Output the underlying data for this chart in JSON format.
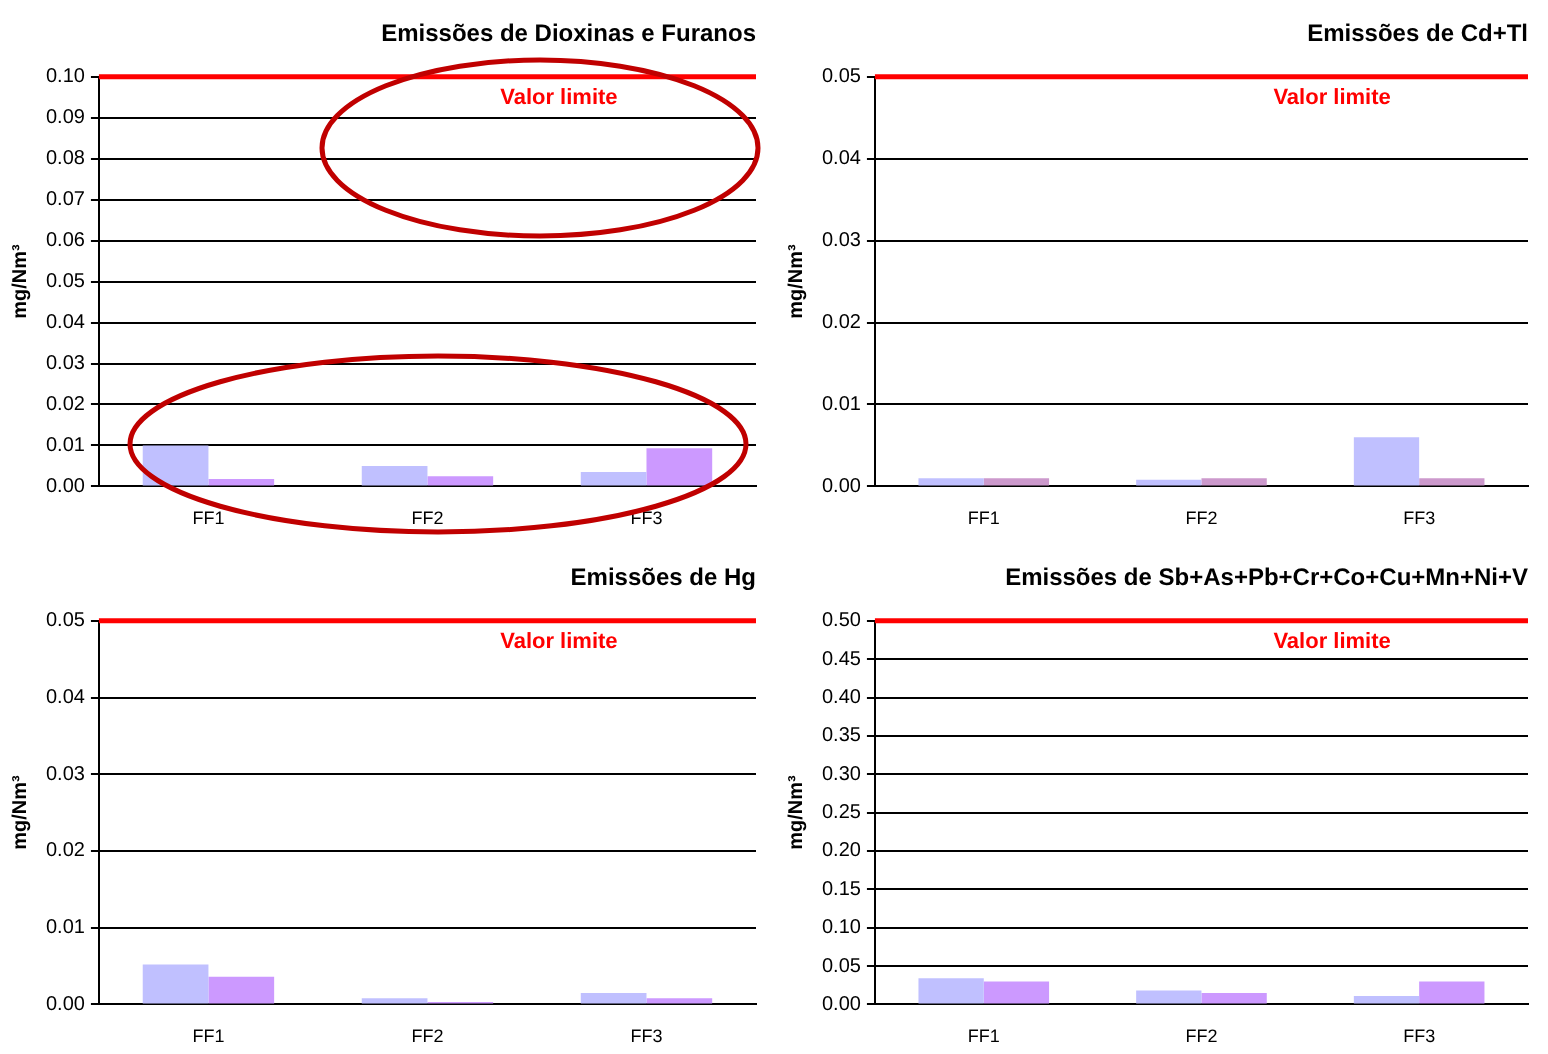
{
  "chart_data": [
    {
      "type": "bar",
      "title": "Emissões de Dioxinas e Furanos",
      "ylabel": "mg/Nm³",
      "categories": [
        "FF1",
        "FF2",
        "FF3"
      ],
      "series": [
        {
          "color": "#c0c0ff",
          "values": [
            0.01,
            0.005,
            0.0035
          ]
        },
        {
          "color": "#cc99ff",
          "values": [
            0.0018,
            0.0025,
            0.0093
          ]
        }
      ],
      "ylim": [
        0,
        0.1
      ],
      "yticks": [
        {
          "value": 0,
          "label": "0.00"
        },
        {
          "value": 0.01,
          "label": "0.01"
        },
        {
          "value": 0.02,
          "label": "0.02"
        },
        {
          "value": 0.03,
          "label": "0.03"
        },
        {
          "value": 0.04,
          "label": "0.04"
        },
        {
          "value": 0.05,
          "label": "0.05"
        },
        {
          "value": 0.06,
          "label": "0.06"
        },
        {
          "value": 0.07,
          "label": "0.07"
        },
        {
          "value": 0.08,
          "label": "0.08"
        },
        {
          "value": 0.09,
          "label": "0.09"
        },
        {
          "value": 0.1,
          "label": "0.10"
        }
      ],
      "grid": "y",
      "legend": false,
      "ref_lines": [
        {
          "axis": "y",
          "value": 0.1,
          "label": "Valor limite",
          "color": "#ff0000"
        }
      ]
    },
    {
      "type": "bar",
      "title": "Emissões de Cd+Tl",
      "ylabel": "mg/Nm³",
      "categories": [
        "FF1",
        "FF2",
        "FF3"
      ],
      "series": [
        {
          "color": "#c0c0ff",
          "values": [
            0.001,
            0.0008,
            0.006
          ]
        },
        {
          "color": "#cc99cc",
          "values": [
            0.001,
            0.001,
            0.001
          ]
        }
      ],
      "ylim": [
        0,
        0.05
      ],
      "yticks": [
        {
          "value": 0,
          "label": "0.00"
        },
        {
          "value": 0.01,
          "label": "0.01"
        },
        {
          "value": 0.02,
          "label": "0.02"
        },
        {
          "value": 0.03,
          "label": "0.03"
        },
        {
          "value": 0.04,
          "label": "0.04"
        },
        {
          "value": 0.05,
          "label": "0.05"
        }
      ],
      "grid": "y",
      "legend": false,
      "ref_lines": [
        {
          "axis": "y",
          "value": 0.05,
          "label": "Valor limite",
          "color": "#ff0000"
        }
      ]
    },
    {
      "type": "bar",
      "title": "Emissões de Hg",
      "ylabel": "mg/Nm³",
      "categories": [
        "FF1",
        "FF2",
        "FF3"
      ],
      "series": [
        {
          "color": "#c0c0ff",
          "values": [
            0.0052,
            0.0008,
            0.0015
          ]
        },
        {
          "color": "#cc99ff",
          "values": [
            0.0036,
            0.0003,
            0.0008
          ]
        }
      ],
      "ylim": [
        0,
        0.05
      ],
      "yticks": [
        {
          "value": 0,
          "label": "0.00"
        },
        {
          "value": 0.01,
          "label": "0.01"
        },
        {
          "value": 0.02,
          "label": "0.02"
        },
        {
          "value": 0.03,
          "label": "0.03"
        },
        {
          "value": 0.04,
          "label": "0.04"
        },
        {
          "value": 0.05,
          "label": "0.05"
        }
      ],
      "grid": "y",
      "legend": false,
      "ref_lines": [
        {
          "axis": "y",
          "value": 0.05,
          "label": "Valor limite",
          "color": "#ff0000"
        }
      ]
    },
    {
      "type": "bar",
      "title": "Emissões de Sb+As+Pb+Cr+Co+Cu+Mn+Ni+V",
      "ylabel": "mg/Nm³",
      "categories": [
        "FF1",
        "FF2",
        "FF3"
      ],
      "series": [
        {
          "color": "#c0c0ff",
          "values": [
            0.034,
            0.018,
            0.011
          ]
        },
        {
          "color": "#cc99ff",
          "values": [
            0.03,
            0.015,
            0.03
          ]
        }
      ],
      "ylim": [
        0,
        0.5
      ],
      "yticks": [
        {
          "value": 0,
          "label": "0.00"
        },
        {
          "value": 0.05,
          "label": "0.05"
        },
        {
          "value": 0.1,
          "label": "0.10"
        },
        {
          "value": 0.15,
          "label": "0.15"
        },
        {
          "value": 0.2,
          "label": "0.20"
        },
        {
          "value": 0.25,
          "label": "0.25"
        },
        {
          "value": 0.3,
          "label": "0.30"
        },
        {
          "value": 0.35,
          "label": "0.35"
        },
        {
          "value": 0.4,
          "label": "0.40"
        },
        {
          "value": 0.45,
          "label": "0.45"
        },
        {
          "value": 0.5,
          "label": "0.50"
        }
      ],
      "grid": "y",
      "legend": false,
      "ref_lines": [
        {
          "axis": "y",
          "value": 0.5,
          "label": "Valor limite",
          "color": "#ff0000"
        }
      ]
    }
  ]
}
